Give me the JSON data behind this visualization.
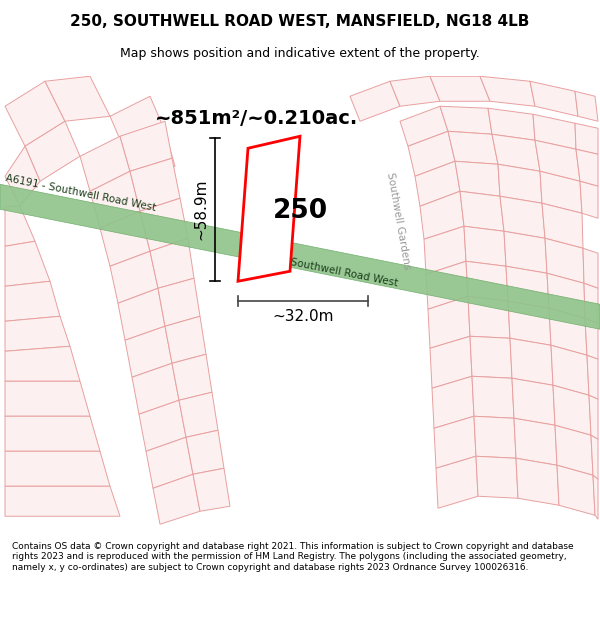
{
  "title": "250, SOUTHWELL ROAD WEST, MANSFIELD, NG18 4LB",
  "subtitle": "Map shows position and indicative extent of the property.",
  "footer": "Contains OS data © Crown copyright and database right 2021. This information is subject to Crown copyright and database rights 2023 and is reproduced with the permission of HM Land Registry. The polygons (including the associated geometry, namely x, y co-ordinates) are subject to Crown copyright and database rights 2023 Ordnance Survey 100026316.",
  "map_bg": "#f0eeea",
  "road_color": "#8fc48a",
  "road_border": "#6aaa65",
  "plot_outline_color": "#e8a0a0",
  "highlight_color": "#ff0000",
  "area_text": "~851m²/~0.210ac.",
  "number_text": "250",
  "width_text": "~32.0m",
  "height_text": "~58.9m",
  "road_label1": "A6191 - Southwell Road West",
  "road_label2": "Southwell Road West",
  "street_label": "Southwell Gardens"
}
